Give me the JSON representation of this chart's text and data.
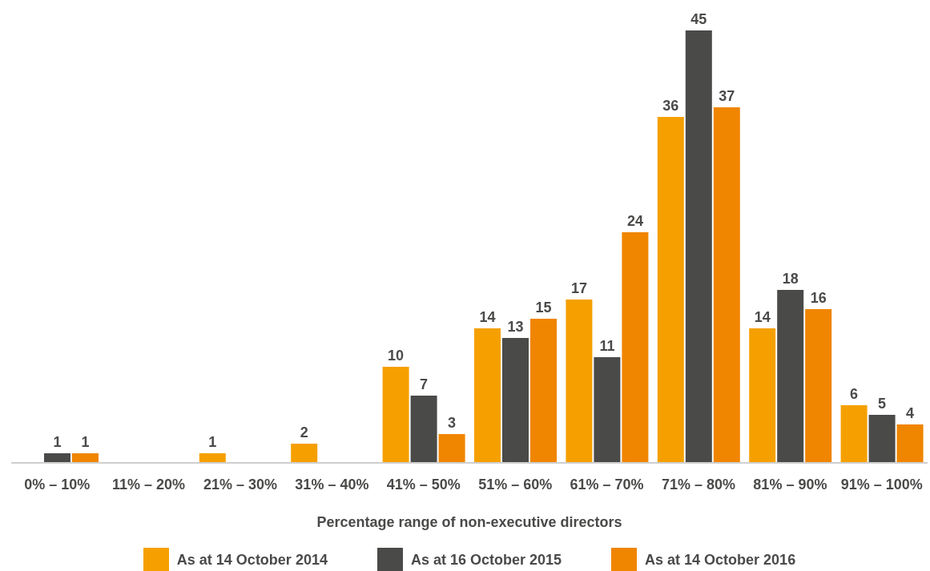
{
  "chart_data": {
    "type": "bar",
    "categories": [
      "0% – 10%",
      "11% – 20%",
      "21% – 30%",
      "31% – 40%",
      "41% – 50%",
      "51% – 60%",
      "61% – 70%",
      "71% – 80%",
      "81% – 90%",
      "91% – 100%"
    ],
    "series": [
      {
        "name": "As at 14 October 2014",
        "color": "#f5a000",
        "values": [
          null,
          null,
          1,
          2,
          10,
          14,
          17,
          36,
          14,
          6
        ]
      },
      {
        "name": "As at 16 October 2015",
        "color": "#4a4a49",
        "values": [
          1,
          null,
          null,
          null,
          7,
          13,
          11,
          45,
          18,
          5
        ]
      },
      {
        "name": "As at 14 October 2016",
        "color": "#f08500",
        "values": [
          1,
          null,
          null,
          null,
          3,
          15,
          24,
          37,
          16,
          4
        ]
      }
    ],
    "xlabel": "Percentage range of non-executive directors",
    "data_labels": true,
    "legend": "bottom"
  }
}
